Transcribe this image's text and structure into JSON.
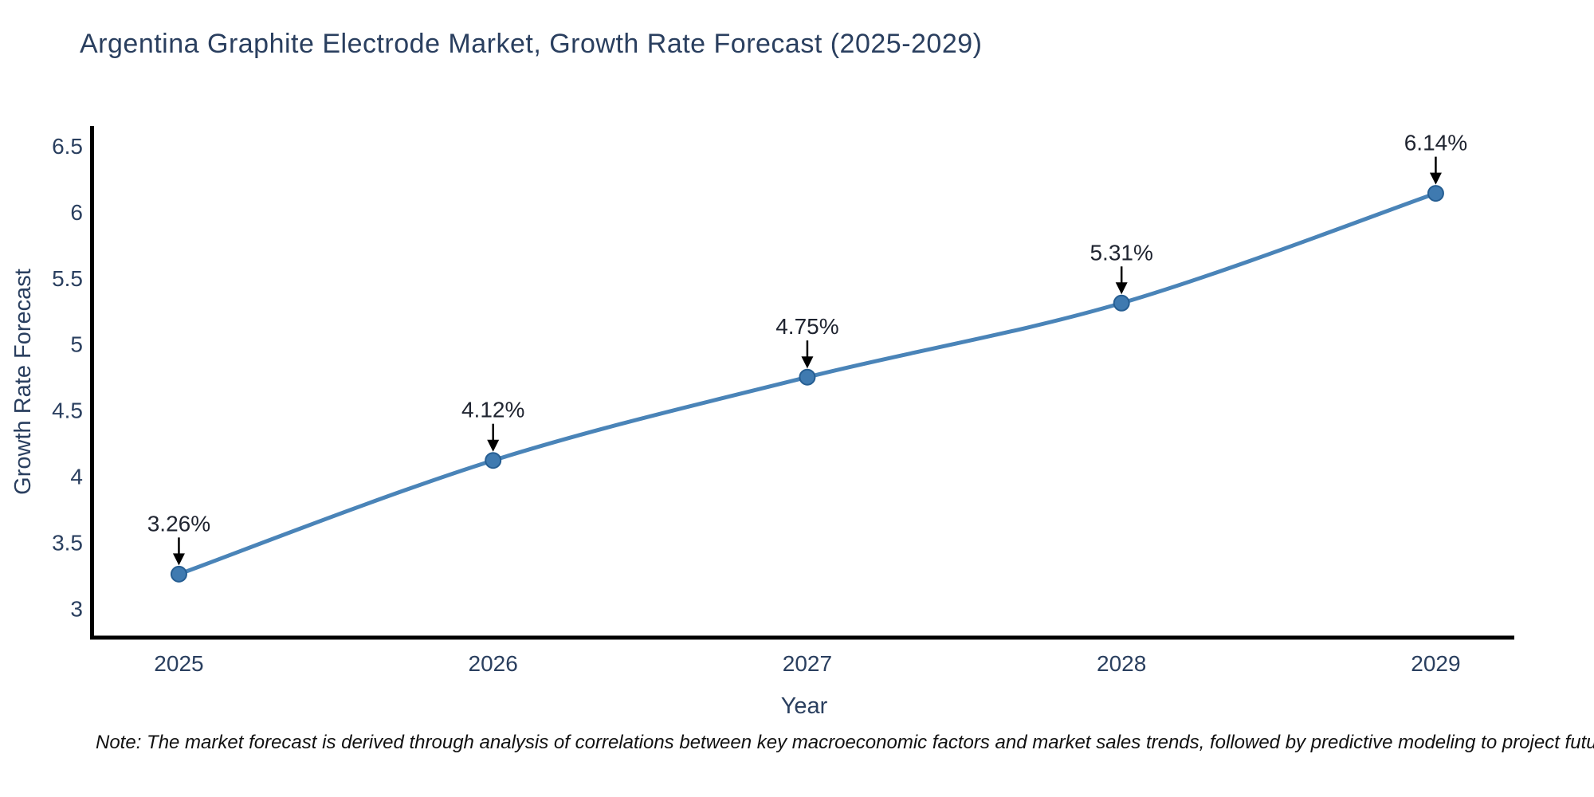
{
  "title": "Argentina Graphite Electrode Market, Growth Rate Forecast (2025-2029)",
  "note": "Note: The market forecast is derived through analysis of correlations between key macroeconomic factors and market sales trends, followed by predictive modeling to project future sales",
  "colors": {
    "background": "#ffffff",
    "title_text": "#2a3f5f",
    "tick_text": "#2a3f5f",
    "axis_title_text": "#2a3f5f",
    "axis_line": "#000000",
    "line": "#4a84b8",
    "marker_fill": "#3f7ab0",
    "marker_edge": "#265e92",
    "annotation_text": "#1f2430",
    "arrow": "#000000",
    "note_text": "#111111"
  },
  "chart_data": {
    "type": "line",
    "title": "Argentina Graphite Electrode Market, Growth Rate Forecast (2025-2029)",
    "xlabel": "Year",
    "ylabel": "Growth Rate Forecast",
    "x": [
      2025,
      2026,
      2027,
      2028,
      2029
    ],
    "y": [
      3.26,
      4.12,
      4.75,
      5.31,
      6.14
    ],
    "point_labels": [
      "3.26%",
      "4.12%",
      "4.75%",
      "5.31%",
      "6.14%"
    ],
    "x_tick_labels": [
      "2025",
      "2026",
      "2027",
      "2028",
      "2029"
    ],
    "y_tick_values": [
      3,
      3.5,
      4,
      4.5,
      5,
      5.5,
      6,
      6.5
    ],
    "y_tick_labels": [
      "3",
      "3.5",
      "4",
      "4.5",
      "5",
      "5.5",
      "6",
      "6.5"
    ],
    "xlim": [
      2024.73,
      2029.25
    ],
    "ylim": [
      2.78,
      6.65
    ],
    "grid": false,
    "legend": "none",
    "line_shape": "spline",
    "marker": "circle",
    "annotations": "value labels with down arrows above each point",
    "footnote": "Note: The market forecast is derived through analysis of correlations between key macroeconomic factors and market sales trends, followed by predictive modeling to project future sales"
  }
}
